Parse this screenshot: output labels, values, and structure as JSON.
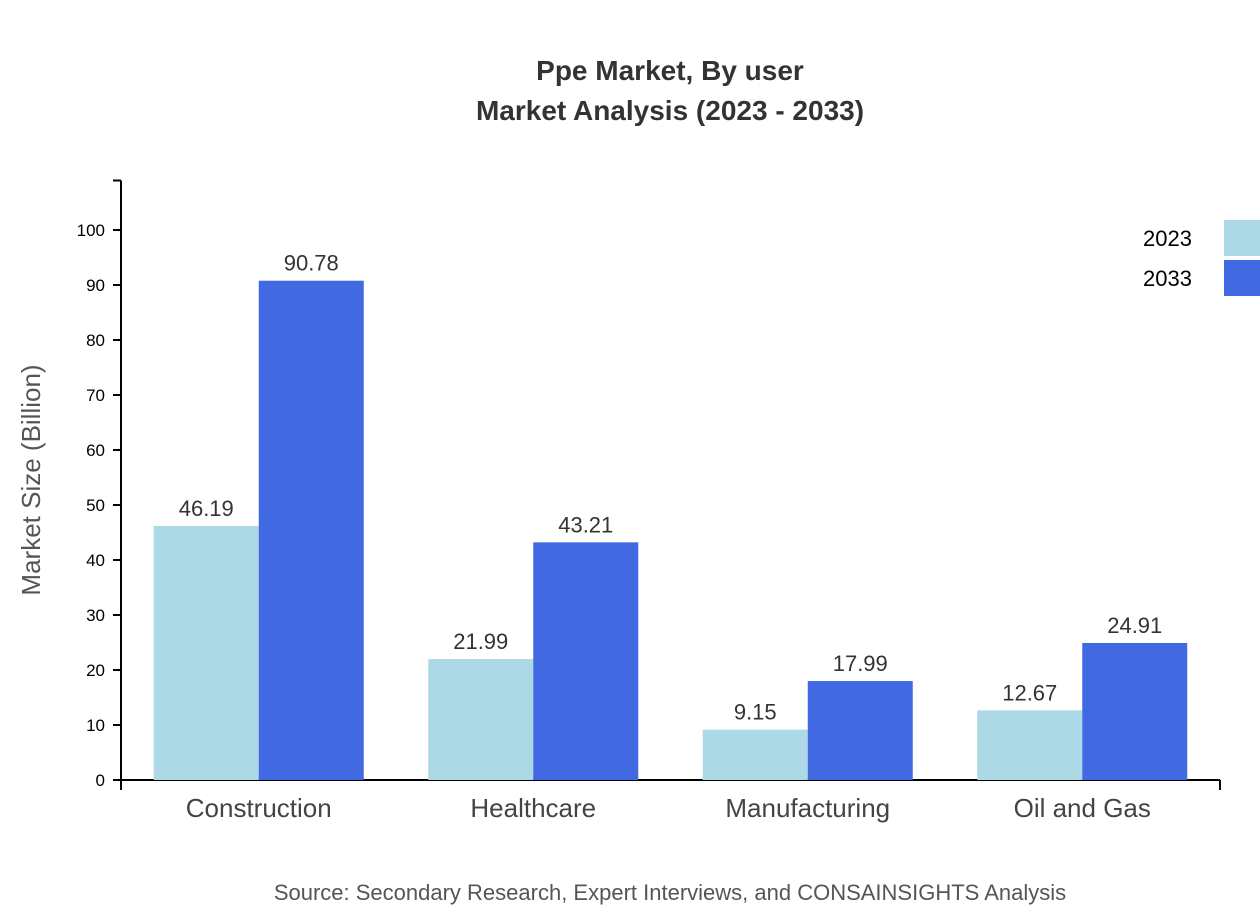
{
  "chart_data": {
    "type": "bar",
    "title": "Ppe Market, By user",
    "subtitle": "Market Analysis (2023 - 2033)",
    "xlabel": "",
    "ylabel": "Market Size (Billion)",
    "ylim": [
      0,
      109
    ],
    "yticks": [
      0,
      10,
      20,
      30,
      40,
      50,
      60,
      70,
      80,
      90,
      100
    ],
    "categories": [
      "Construction",
      "Healthcare",
      "Manufacturing",
      "Oil and Gas"
    ],
    "series": [
      {
        "name": "2023",
        "color": "#add8e6",
        "values": [
          46.19,
          21.99,
          9.15,
          12.67
        ]
      },
      {
        "name": "2033",
        "color": "#4169e1",
        "values": [
          90.78,
          43.21,
          17.99,
          24.91
        ]
      }
    ],
    "grid": false,
    "legend": "top-right",
    "source": "Source: Secondary Research, Expert Interviews, and CONSAINSIGHTS Analysis"
  }
}
